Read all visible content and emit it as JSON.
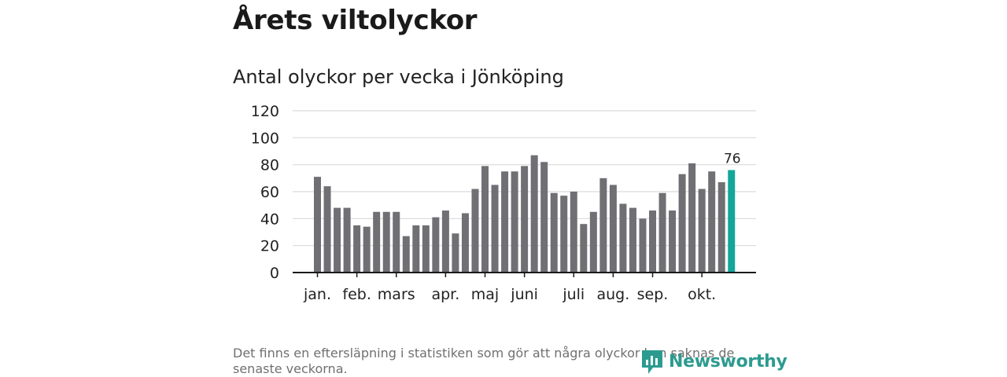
{
  "headline": "Årets viltolyckor",
  "subtitle": "Antal olyckor per vecka i Jönköping",
  "footnote": "Det finns en eftersläpning i statistiken som gör att några olyckor kan saknas de senaste veckorna.",
  "brand": {
    "name": "Newsworthy",
    "icon": "newsworthy-logo-icon",
    "color": "#2c9b8f"
  },
  "colors": {
    "bar": "#707074",
    "highlight": "#14a69a",
    "grid": "#d9d9d9",
    "axis": "#1a1a1a"
  },
  "chart_data": {
    "type": "bar",
    "title": "Antal olyckor per vecka i Jönköping",
    "xlabel": "",
    "ylabel": "",
    "ylim": [
      0,
      120
    ],
    "yticks": [
      0,
      20,
      40,
      60,
      80,
      100,
      120
    ],
    "values": [
      71,
      64,
      48,
      48,
      35,
      34,
      45,
      45,
      45,
      27,
      35,
      35,
      41,
      46,
      29,
      44,
      62,
      79,
      65,
      75,
      75,
      79,
      87,
      82,
      59,
      57,
      60,
      36,
      45,
      70,
      65,
      51,
      48,
      40,
      46,
      59,
      46,
      73,
      81,
      62,
      75,
      67,
      76
    ],
    "month_labels": [
      {
        "label": "jan.",
        "index": 0
      },
      {
        "label": "feb.",
        "index": 4
      },
      {
        "label": "mars",
        "index": 8
      },
      {
        "label": "apr.",
        "index": 13
      },
      {
        "label": "maj",
        "index": 17
      },
      {
        "label": "juni",
        "index": 21
      },
      {
        "label": "juli",
        "index": 26
      },
      {
        "label": "aug.",
        "index": 30
      },
      {
        "label": "sep.",
        "index": 34
      },
      {
        "label": "okt.",
        "index": 39
      }
    ],
    "highlight_index": 42,
    "highlight_label": "76",
    "grid": true
  }
}
